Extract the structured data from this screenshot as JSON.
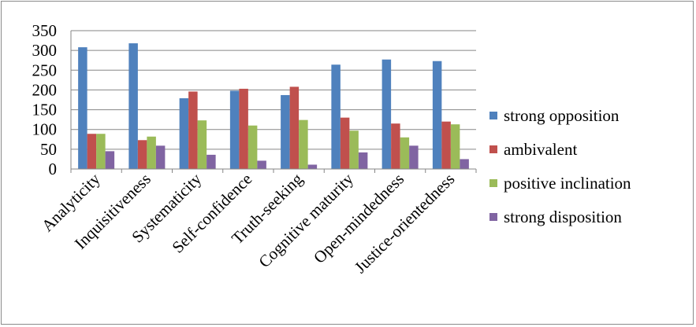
{
  "chart_data": {
    "type": "bar",
    "title": "",
    "xlabel": "",
    "ylabel": "",
    "ylim": [
      0,
      350
    ],
    "yticks": [
      "0",
      "50",
      "100",
      "150",
      "200",
      "250",
      "300",
      "350"
    ],
    "grid": "horizontal",
    "legend_position": "right",
    "categories": [
      "Analyticity",
      "Inquisitiveness",
      "Systematicity",
      "Self-confidence",
      "Truth-seeking",
      "Cognitive maturity",
      "Open-mindedness",
      "Justice-orientedness"
    ],
    "series": [
      {
        "name": "strong opposition",
        "color": "#4f81bd",
        "values": [
          308,
          318,
          179,
          198,
          187,
          264,
          277,
          273
        ]
      },
      {
        "name": "ambivalent",
        "color": "#c0504d",
        "values": [
          89,
          73,
          196,
          203,
          208,
          130,
          115,
          120
        ]
      },
      {
        "name": "positive inclination",
        "color": "#9bbb59",
        "values": [
          89,
          82,
          123,
          110,
          124,
          97,
          80,
          113
        ]
      },
      {
        "name": "strong disposition",
        "color": "#8064a2",
        "values": [
          45,
          59,
          36,
          21,
          11,
          42,
          59,
          25
        ]
      }
    ]
  }
}
